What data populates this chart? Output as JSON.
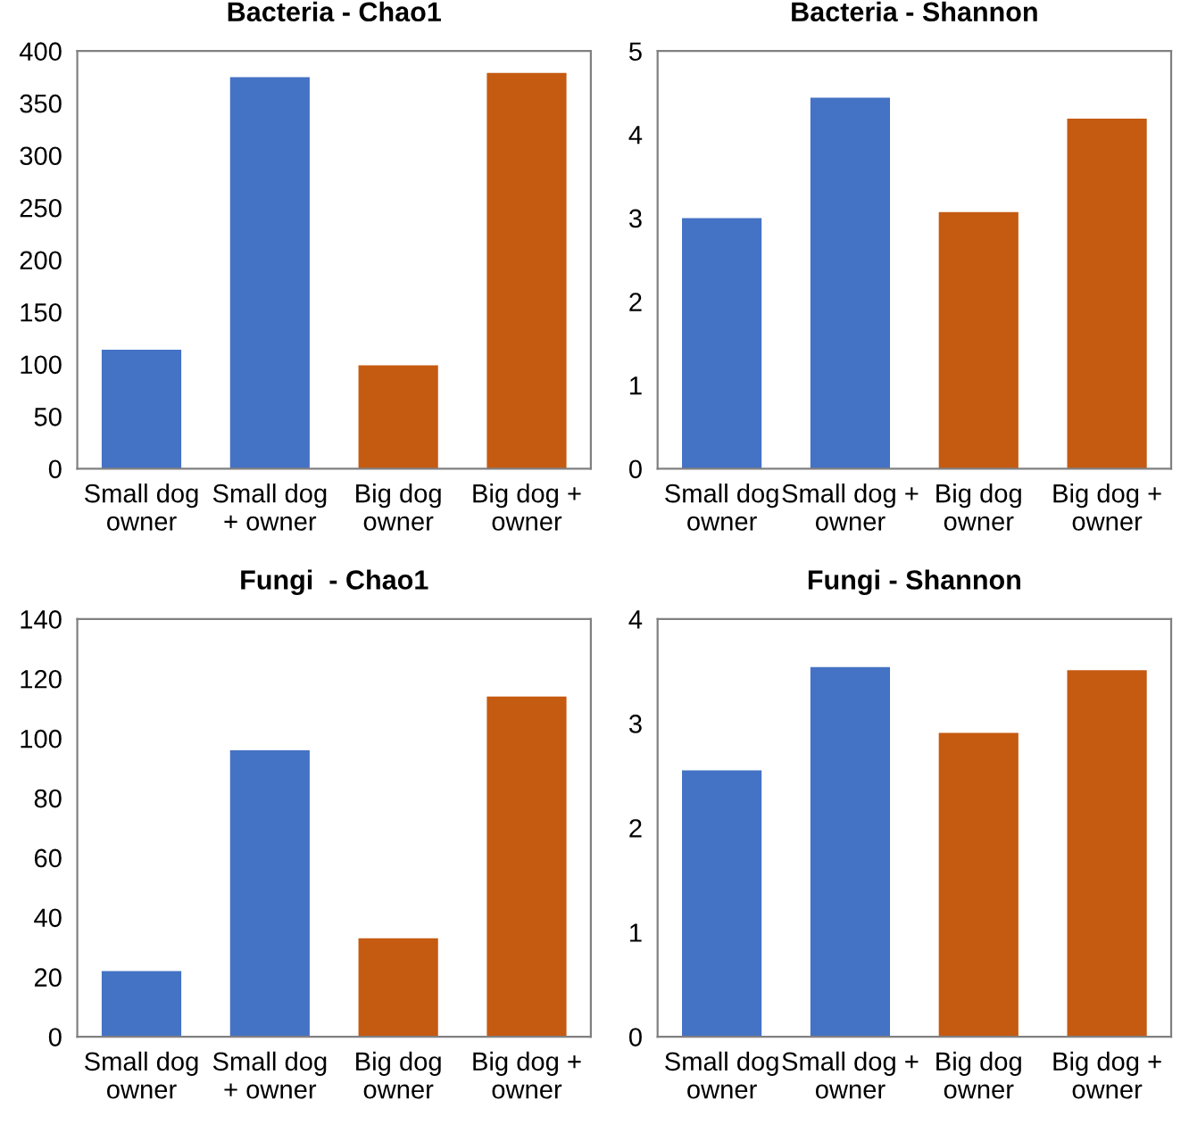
{
  "chart_data": [
    {
      "type": "bar",
      "title": "Bacteria - Chao1",
      "categories": [
        "Small dog\nowner",
        "Small dog\n+ owner",
        "Big dog\nowner",
        "Big dog +\nowner"
      ],
      "values": [
        114,
        375,
        99,
        379
      ],
      "colors": [
        "#4472c4",
        "#4472c4",
        "#c55a11",
        "#c55a11"
      ],
      "ylim": [
        0,
        400
      ],
      "yticks": [
        0,
        50,
        100,
        150,
        200,
        250,
        300,
        350,
        400
      ],
      "grid": false
    },
    {
      "type": "bar",
      "title": "Bacteria - Shannon",
      "categories": [
        "Small dog\nowner",
        "Small dog +\nowner",
        "Big dog\nowner",
        "Big dog +\nowner"
      ],
      "values": [
        3.0,
        4.44,
        3.07,
        4.19
      ],
      "colors": [
        "#4472c4",
        "#4472c4",
        "#c55a11",
        "#c55a11"
      ],
      "ylim": [
        0,
        5
      ],
      "yticks": [
        0,
        1,
        2,
        3,
        4,
        5
      ],
      "grid": false
    },
    {
      "type": "bar",
      "title": "Fungi  - Chao1",
      "categories": [
        "Small dog\nowner",
        "Small dog\n+ owner",
        "Big dog\nowner",
        "Big dog +\nowner"
      ],
      "values": [
        22,
        96,
        33,
        114
      ],
      "colors": [
        "#4472c4",
        "#4472c4",
        "#c55a11",
        "#c55a11"
      ],
      "ylim": [
        0,
        140
      ],
      "yticks": [
        0,
        20,
        40,
        60,
        80,
        100,
        120,
        140
      ],
      "grid": false
    },
    {
      "type": "bar",
      "title": "Fungi - Shannon",
      "categories": [
        "Small dog\nowner",
        "Small dog +\nowner",
        "Big dog\nowner",
        "Big dog +\nowner"
      ],
      "values": [
        2.55,
        3.54,
        2.91,
        3.51
      ],
      "colors": [
        "#4472c4",
        "#4472c4",
        "#c55a11",
        "#c55a11"
      ],
      "ylim": [
        0,
        4
      ],
      "yticks": [
        0,
        1,
        2,
        3,
        4
      ],
      "grid": false
    }
  ]
}
